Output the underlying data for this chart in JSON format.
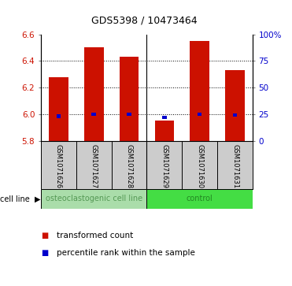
{
  "title": "GDS5398 / 10473464",
  "samples": [
    "GSM1071626",
    "GSM1071627",
    "GSM1071628",
    "GSM1071629",
    "GSM1071630",
    "GSM1071631"
  ],
  "transformed_counts": [
    6.28,
    6.5,
    6.43,
    5.95,
    6.55,
    6.33
  ],
  "percentile_ranks": [
    23,
    25,
    25,
    22,
    25,
    24
  ],
  "ylim": [
    5.8,
    6.6
  ],
  "yticks": [
    5.8,
    6.0,
    6.2,
    6.4,
    6.6
  ],
  "right_yticks": [
    0,
    25,
    50,
    75,
    100
  ],
  "right_ylabels": [
    "0",
    "25",
    "50",
    "75",
    "100%"
  ],
  "bar_bottom": 5.8,
  "bar_color": "#cc1100",
  "blue_color": "#0000cc",
  "groups": [
    {
      "label": "osteoclastogenic cell line",
      "indices": [
        0,
        1,
        2
      ],
      "color": "#aaddaa"
    },
    {
      "label": "control",
      "indices": [
        3,
        4,
        5
      ],
      "color": "#44dd44"
    }
  ],
  "group_label_color_left": "#559955",
  "group_label_color_right": "#228822",
  "sample_area_color": "#cccccc",
  "background_color": "#ffffff",
  "plot_bg": "#ffffff",
  "tick_label_color_left": "#cc1100",
  "tick_label_color_right": "#0000cc",
  "bar_width": 0.55,
  "blue_bar_width": 0.12,
  "grid_vals": [
    6.0,
    6.2,
    6.4
  ],
  "title_fontsize": 9,
  "tick_fontsize": 7.5,
  "sample_fontsize": 6.0,
  "group_fontsize": 7.0,
  "legend_fontsize": 7.5
}
